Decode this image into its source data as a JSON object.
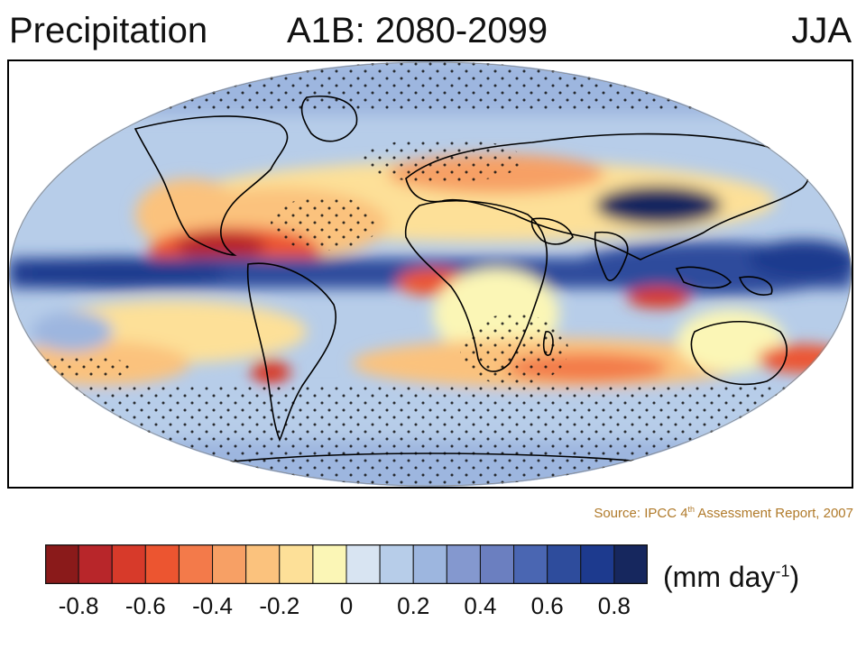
{
  "title": {
    "left": "Precipitation",
    "middle": "A1B: 2080-2099",
    "right": "JJA"
  },
  "source": {
    "prefix": "Source:  IPCC 4",
    "superscript": "th",
    "suffix": " Assessment Report, 2007"
  },
  "colorbar": {
    "colors": [
      "#8a1a1a",
      "#b8262a",
      "#d73a2a",
      "#ec5530",
      "#f37a4a",
      "#f7a065",
      "#fbc27d",
      "#fde098",
      "#fbf6b6",
      "#d8e4f2",
      "#b7cde9",
      "#9db6df",
      "#8498cf",
      "#6b7fc0",
      "#4a66b2",
      "#2e4c9c",
      "#1d3a8e",
      "#16275e"
    ],
    "ticks": [
      "-0.8",
      "-0.6",
      "-0.4",
      "-0.2",
      "0",
      "0.2",
      "0.4",
      "0.6",
      "0.8"
    ],
    "units_prefix": "(mm day",
    "units_sup": "-1",
    "units_suffix": ")"
  }
}
